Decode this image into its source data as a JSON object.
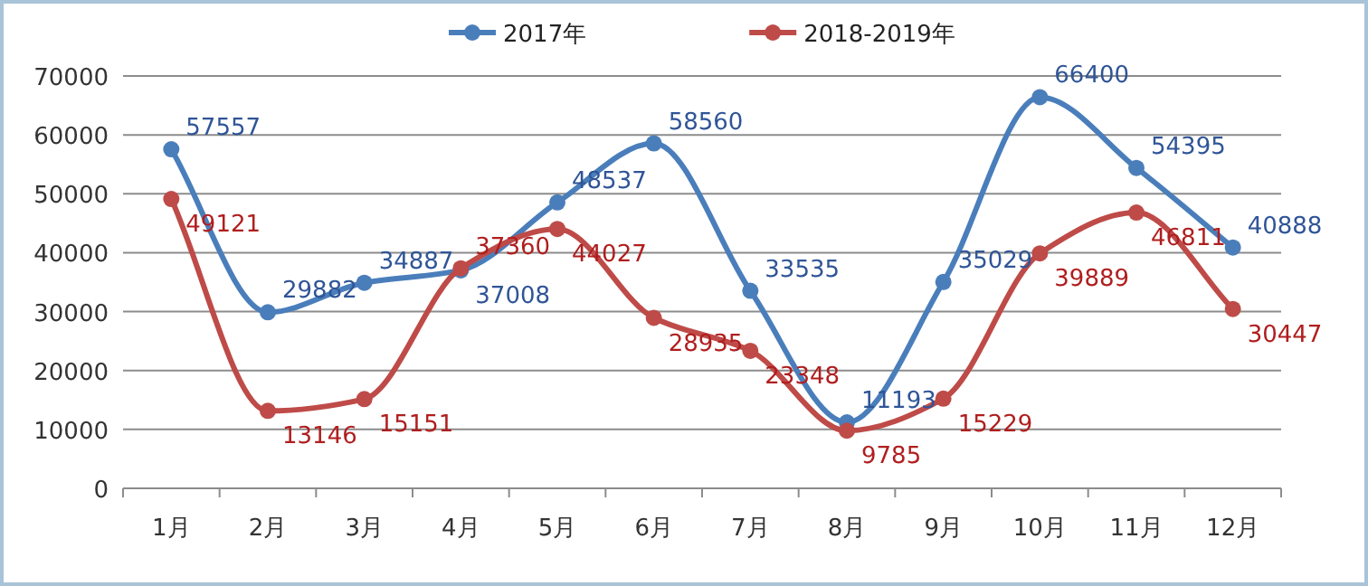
{
  "chart_data": {
    "type": "line",
    "categories": [
      "1月",
      "2月",
      "3月",
      "4月",
      "5月",
      "6月",
      "7月",
      "8月",
      "9月",
      "10月",
      "11月",
      "12月"
    ],
    "series": [
      {
        "name": "2017年",
        "color": "#4a7ebb",
        "values": [
          57557,
          29882,
          34887,
          37008,
          48537,
          58560,
          33535,
          11193,
          35029,
          66400,
          54395,
          40888
        ]
      },
      {
        "name": "2018-2019年",
        "color": "#be4b48",
        "values": [
          49121,
          13146,
          15151,
          37360,
          44027,
          28935,
          23348,
          9785,
          15229,
          39889,
          46811,
          30447
        ]
      }
    ],
    "ylim": [
      0,
      70000
    ],
    "yticks": [
      0,
      10000,
      20000,
      30000,
      40000,
      50000,
      60000,
      70000
    ],
    "grid": "y",
    "legend": "top",
    "marker": "circle",
    "line_style": "solid",
    "data_labels": true
  }
}
